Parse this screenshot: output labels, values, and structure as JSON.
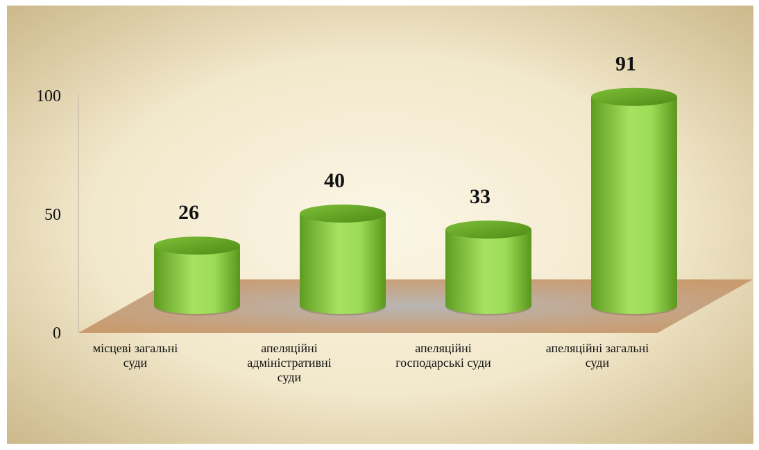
{
  "chart_data": {
    "type": "bar",
    "shape": "cylinder",
    "categories": [
      "місцеві загальні суди",
      "апеляційні адміністративні суди",
      "апеляційні господарські суди",
      "апеляційні загальні суди"
    ],
    "values": [
      26,
      40,
      33,
      91
    ],
    "color": "#8fd14f",
    "ylim": [
      0,
      100
    ],
    "yticks": [
      0,
      50,
      100
    ],
    "grid": false
  }
}
